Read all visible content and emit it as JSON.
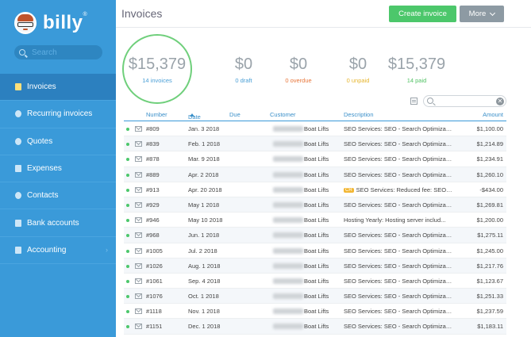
{
  "sidebar": {
    "brand": "billy",
    "brand_mark": "®",
    "search_placeholder": "Search",
    "items": [
      {
        "label": "Invoices",
        "icon": "invoice-icon",
        "active": true
      },
      {
        "label": "Recurring invoices",
        "icon": "recurring-icon"
      },
      {
        "label": "Quotes",
        "icon": "quote-icon"
      },
      {
        "label": "Expenses",
        "icon": "expense-icon"
      },
      {
        "label": "Contacts",
        "icon": "contacts-icon"
      },
      {
        "label": "Bank accounts",
        "icon": "bank-icon"
      },
      {
        "label": "Accounting",
        "icon": "accounting-icon",
        "chevron": "›"
      }
    ]
  },
  "header": {
    "title": "Invoices",
    "create_label": "Create invoice",
    "more_label": "More"
  },
  "summary": {
    "total": {
      "amount": "$15,379",
      "label": "14 invoices"
    },
    "draft": {
      "amount": "$0",
      "label": "0 draft"
    },
    "overdue": {
      "amount": "$0",
      "label": "0 overdue"
    },
    "unpaid": {
      "amount": "$0",
      "label": "0 unpaid"
    },
    "paid": {
      "amount": "$15,379",
      "label": "14 paid"
    }
  },
  "table": {
    "search_clear": "✕",
    "columns": {
      "number": "Number",
      "date": "Date",
      "due": "Due",
      "customer": "Customer",
      "description": "Description",
      "amount": "Amount"
    },
    "rows": [
      {
        "number": "#809",
        "date": "Jan. 3 2018",
        "customer": "Boat Lifts",
        "description": "SEO Services: SEO - Search Optimizat...",
        "amount": "$1,100.00"
      },
      {
        "number": "#839",
        "date": "Feb. 1 2018",
        "customer": "Boat Lifts",
        "description": "SEO Services: SEO - Search Optimizat...",
        "amount": "$1,214.89"
      },
      {
        "number": "#878",
        "date": "Mar. 9 2018",
        "customer": "Boat Lifts",
        "description": "SEO Services: SEO - Search Optimizat...",
        "amount": "$1,234.91"
      },
      {
        "number": "#889",
        "date": "Apr. 2 2018",
        "customer": "Boat Lifts",
        "description": "SEO Services: SEO - Search Optimizat...",
        "amount": "$1,260.10"
      },
      {
        "number": "#913",
        "date": "Apr. 20 2018",
        "customer": "Boat Lifts",
        "badge": "CR",
        "description": "SEO Services: Reduced fee: SEO -...",
        "amount": "-$434.00"
      },
      {
        "number": "#929",
        "date": "May 1 2018",
        "customer": "Boat Lifts",
        "description": "SEO Services: SEO - Search Optimizat...",
        "amount": "$1,269.81"
      },
      {
        "number": "#946",
        "date": "May 10 2018",
        "customer": "Boat Lifts",
        "description": "Hosting Yearly: Hosting server includ...",
        "amount": "$1,200.00"
      },
      {
        "number": "#968",
        "date": "Jun. 1 2018",
        "customer": "Boat Lifts",
        "description": "SEO Services: SEO - Search Optimizat...",
        "amount": "$1,275.11"
      },
      {
        "number": "#1005",
        "date": "Jul. 2 2018",
        "customer": "Boat Lifts",
        "description": "SEO Services: SEO - Search Optimizat...",
        "amount": "$1,245.00"
      },
      {
        "number": "#1026",
        "date": "Aug. 1 2018",
        "customer": "Boat Lifts",
        "description": "SEO Services: SEO - Search Optimizat...",
        "amount": "$1,217.76"
      },
      {
        "number": "#1061",
        "date": "Sep. 4 2018",
        "customer": "Boat Lifts",
        "description": "SEO Services: SEO - Search Optimizat...",
        "amount": "$1,123.67"
      },
      {
        "number": "#1076",
        "date": "Oct. 1 2018",
        "customer": "Boat Lifts",
        "description": "SEO Services: SEO - Search Optimizat...",
        "amount": "$1,251.33"
      },
      {
        "number": "#1118",
        "date": "Nov. 1 2018",
        "customer": "Boat Lifts",
        "description": "SEO Services: SEO - Search Optimizat...",
        "amount": "$1,237.59"
      },
      {
        "number": "#1151",
        "date": "Dec. 1 2018",
        "customer": "Boat Lifts",
        "description": "SEO Services: SEO - Search Optimizat...",
        "amount": "$1,183.11"
      }
    ]
  },
  "colors": {
    "sidebar": "#3a9ad9",
    "sidebar_active": "#2c80bf",
    "create_button": "#4cc76b",
    "more_button": "#8d9aa3",
    "paid_status": "#4cc76b",
    "overdue": "#e8763a",
    "unpaid": "#e6b52e"
  }
}
